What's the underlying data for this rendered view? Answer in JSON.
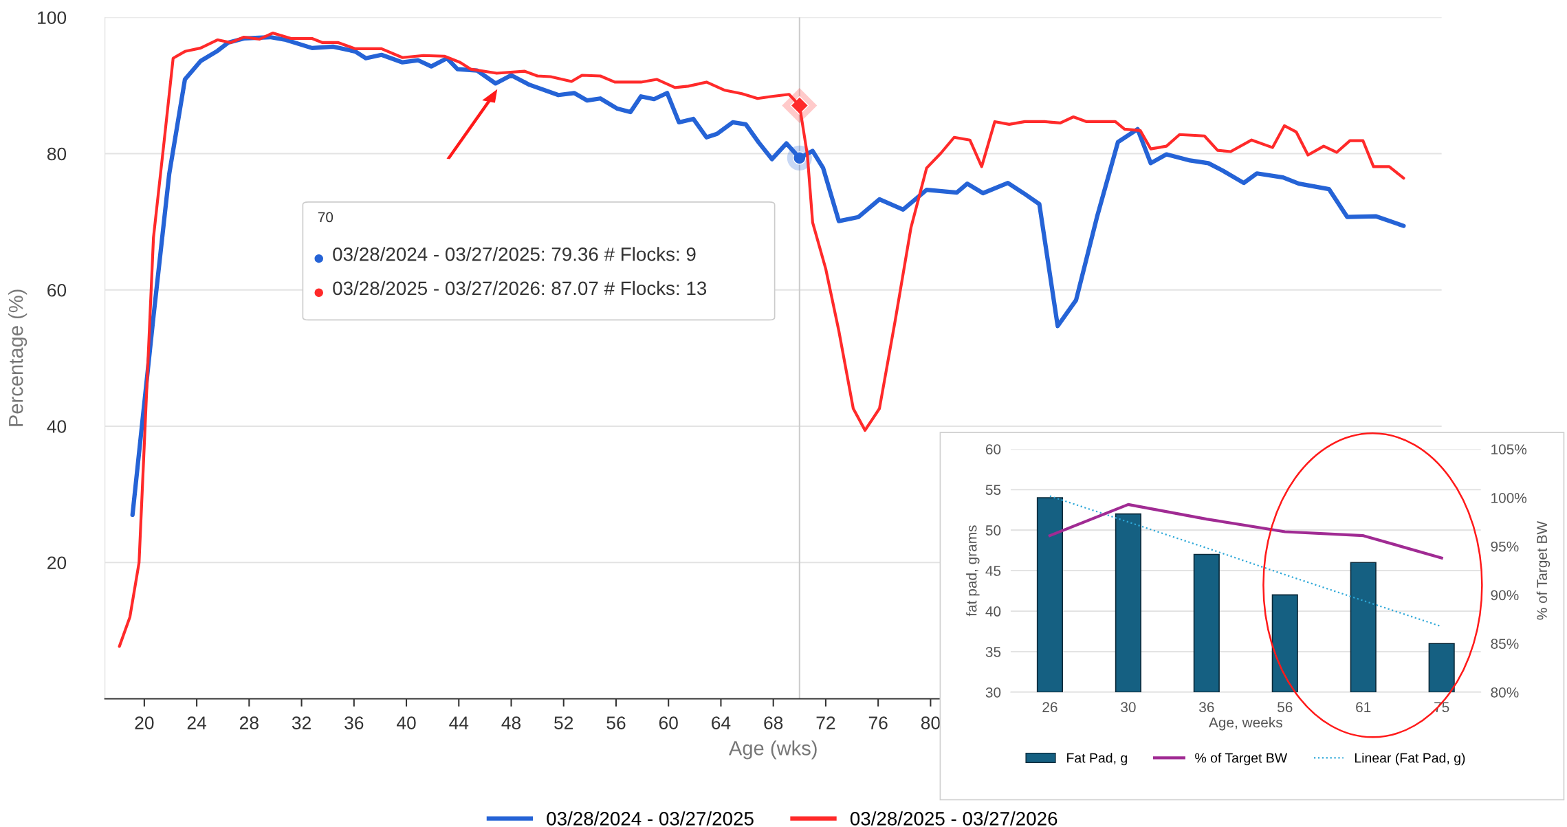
{
  "chart_data": [
    {
      "type": "line",
      "xlabel": "Age (wks)",
      "ylabel": "Percentage (%)",
      "xlim": [
        17,
        119
      ],
      "ylim": [
        0,
        100
      ],
      "xticks": [
        20,
        24,
        28,
        32,
        36,
        40,
        44,
        48,
        52,
        56,
        60,
        64,
        68,
        72,
        76,
        80
      ],
      "yticks": [
        20,
        40,
        60,
        80,
        100
      ],
      "grid": "y",
      "legend": "bottom",
      "marker": "none",
      "line_style": "solid",
      "ref_lines": [
        {
          "axis": "x",
          "value": 70,
          "color": "#cccccc"
        }
      ],
      "annotations": [
        "70",
        "03/28/2024 - 03/27/2025: 79.36 # Flocks: 9",
        "03/28/2025 - 03/27/2026: 87.07 # Flocks: 13"
      ],
      "series": [
        {
          "name": "03/28/2024 - 03/27/2025",
          "color": "#2563d6",
          "x": [
            19.1,
            20.7,
            21.9,
            23.1,
            24.3,
            25.6,
            26.4,
            27.6,
            29.6,
            30.8,
            32.8,
            34.4,
            36.1,
            36.9,
            38.1,
            39.7,
            40.9,
            41.9,
            43.1,
            43.9,
            45.4,
            46.8,
            48.0,
            49.4,
            51.6,
            52.8,
            53.8,
            54.8,
            56.1,
            57.1,
            57.9,
            58.9,
            59.9,
            60.8,
            61.9,
            62.9,
            63.7,
            64.9,
            65.9,
            66.9,
            67.9,
            69.0,
            70,
            71.0,
            71.8,
            73.0,
            74.5,
            76.1,
            77.9,
            79.7,
            82.0,
            82.8,
            84.0,
            85.9,
            87.1,
            88.3,
            89.7,
            91.1,
            92.7,
            94.3,
            95.8,
            96.8,
            98.0,
            99.8,
            101.2,
            102.3,
            103.9,
            104.9,
            106.9,
            108.1,
            110.4,
            111.8,
            114.0,
            116.1
          ],
          "values": [
            27,
            56.1,
            77,
            90.9,
            93.6,
            95.1,
            96.3,
            96.9,
            97.1,
            96.7,
            95.5,
            95.7,
            95,
            94,
            94.5,
            93.4,
            93.7,
            92.8,
            94,
            92.4,
            92.2,
            90.3,
            91.5,
            90.1,
            88.6,
            88.9,
            87.8,
            88.1,
            86.6,
            86.1,
            88.4,
            88,
            88.9,
            84.6,
            85.1,
            82.4,
            82.9,
            84.6,
            84.3,
            81.6,
            79.2,
            81.5,
            79.36,
            80.4,
            77.9,
            70.1,
            70.7,
            73.3,
            71.8,
            74.7,
            74.3,
            75.6,
            74.2,
            75.7,
            74.2,
            72.6,
            54.7,
            58.5,
            70.7,
            81.7,
            83.6,
            78.6,
            79.9,
            79,
            78.6,
            77.5,
            75.7,
            77.1,
            76.5,
            75.6,
            74.8,
            70.7,
            70.8,
            69.4
          ]
        },
        {
          "name": "03/28/2025 - 03/27/2026",
          "color": "#ff2a2a",
          "x": [
            18.1,
            18.9,
            19.6,
            20.7,
            21.5,
            22.2,
            23.1,
            24.3,
            25.6,
            26.6,
            27.6,
            28.8,
            29.8,
            31.2,
            32.8,
            33.6,
            34.8,
            36.1,
            38.1,
            39.7,
            41.3,
            42.9,
            44.1,
            44.9,
            46.9,
            49.0,
            50.0,
            51.0,
            52.6,
            53.4,
            54.8,
            55.9,
            57.9,
            59.1,
            60.5,
            61.5,
            62.9,
            64.3,
            65.6,
            66.8,
            67.9,
            69.2,
            70,
            70.6,
            71.0,
            72.0,
            73.0,
            74.1,
            75.0,
            76.1,
            77.3,
            78.5,
            79.7,
            80.8,
            81.8,
            83.0,
            83.9,
            84.9,
            86.0,
            87.2,
            88.7,
            89.9,
            90.9,
            91.9,
            94.1,
            94.8,
            96.0,
            96.8,
            98.0,
            99.0,
            100.9,
            101.9,
            102.9,
            104.5,
            106.1,
            107.0,
            107.9,
            108.8,
            110.0,
            111.0,
            112.0,
            113.0,
            113.8,
            115.0,
            116.1
          ],
          "values": [
            7.7,
            12,
            20,
            67.7,
            81.6,
            94,
            95,
            95.5,
            96.7,
            96.3,
            97.1,
            96.8,
            97.7,
            96.9,
            96.9,
            96.3,
            96.3,
            95.4,
            95.4,
            94.1,
            94.4,
            94.3,
            93.4,
            92.4,
            91.8,
            92.1,
            91.4,
            91.3,
            90.6,
            91.5,
            91.4,
            90.5,
            90.5,
            90.9,
            89.7,
            89.9,
            90.5,
            89.3,
            88.8,
            88.1,
            88.4,
            88.7,
            87.07,
            79.8,
            69.9,
            63.1,
            54,
            42.6,
            39.4,
            42.6,
            55.5,
            69.1,
            77.9,
            80.1,
            82.4,
            82,
            78.1,
            84.7,
            84.3,
            84.7,
            84.7,
            84.5,
            85.4,
            84.7,
            84.7,
            83.6,
            83.4,
            80.7,
            81.1,
            82.8,
            82.6,
            80.5,
            80.3,
            82,
            80.9,
            84.1,
            83.2,
            79.8,
            81.1,
            80.2,
            81.9,
            81.9,
            78.1,
            78.1,
            76.4
          ]
        }
      ]
    },
    {
      "type": "bar",
      "xlabel": "Age, weeks",
      "ylabel": "fat pad, grams",
      "y2label": "% of Target BW",
      "categories": [
        "26",
        "30",
        "36",
        "56",
        "61",
        "75"
      ],
      "ylim": [
        30,
        60
      ],
      "yticks": [
        30,
        35,
        40,
        45,
        50,
        55,
        60
      ],
      "y2lim": [
        80,
        105
      ],
      "y2ticks": [
        {
          "value": 80,
          "label": "80%"
        },
        {
          "value": 85,
          "label": "85%"
        },
        {
          "value": 90,
          "label": "90%"
        },
        {
          "value": 95,
          "label": "95%"
        },
        {
          "value": 100,
          "label": "100%"
        },
        {
          "value": 105,
          "label": "105%"
        }
      ],
      "grid": "y",
      "legend": "bottom",
      "series": [
        {
          "name": "Fat Pad, g",
          "type": "bar",
          "color": "#156082",
          "values": [
            54,
            52,
            47,
            42,
            46,
            36
          ]
        },
        {
          "name": "% of Target BW",
          "type": "line",
          "axis": "y2",
          "color": "#a02b93",
          "line_style": "solid",
          "values": [
            96.1,
            99.3,
            97.8,
            96.5,
            96.1,
            93.8
          ]
        },
        {
          "name": "Linear (Fat Pad, g)",
          "type": "line",
          "color": "#2ea8d8",
          "line_style": "dotted",
          "values": [
            54.2,
            51.0,
            47.8,
            44.5,
            41.3,
            38.1
          ]
        }
      ]
    }
  ]
}
